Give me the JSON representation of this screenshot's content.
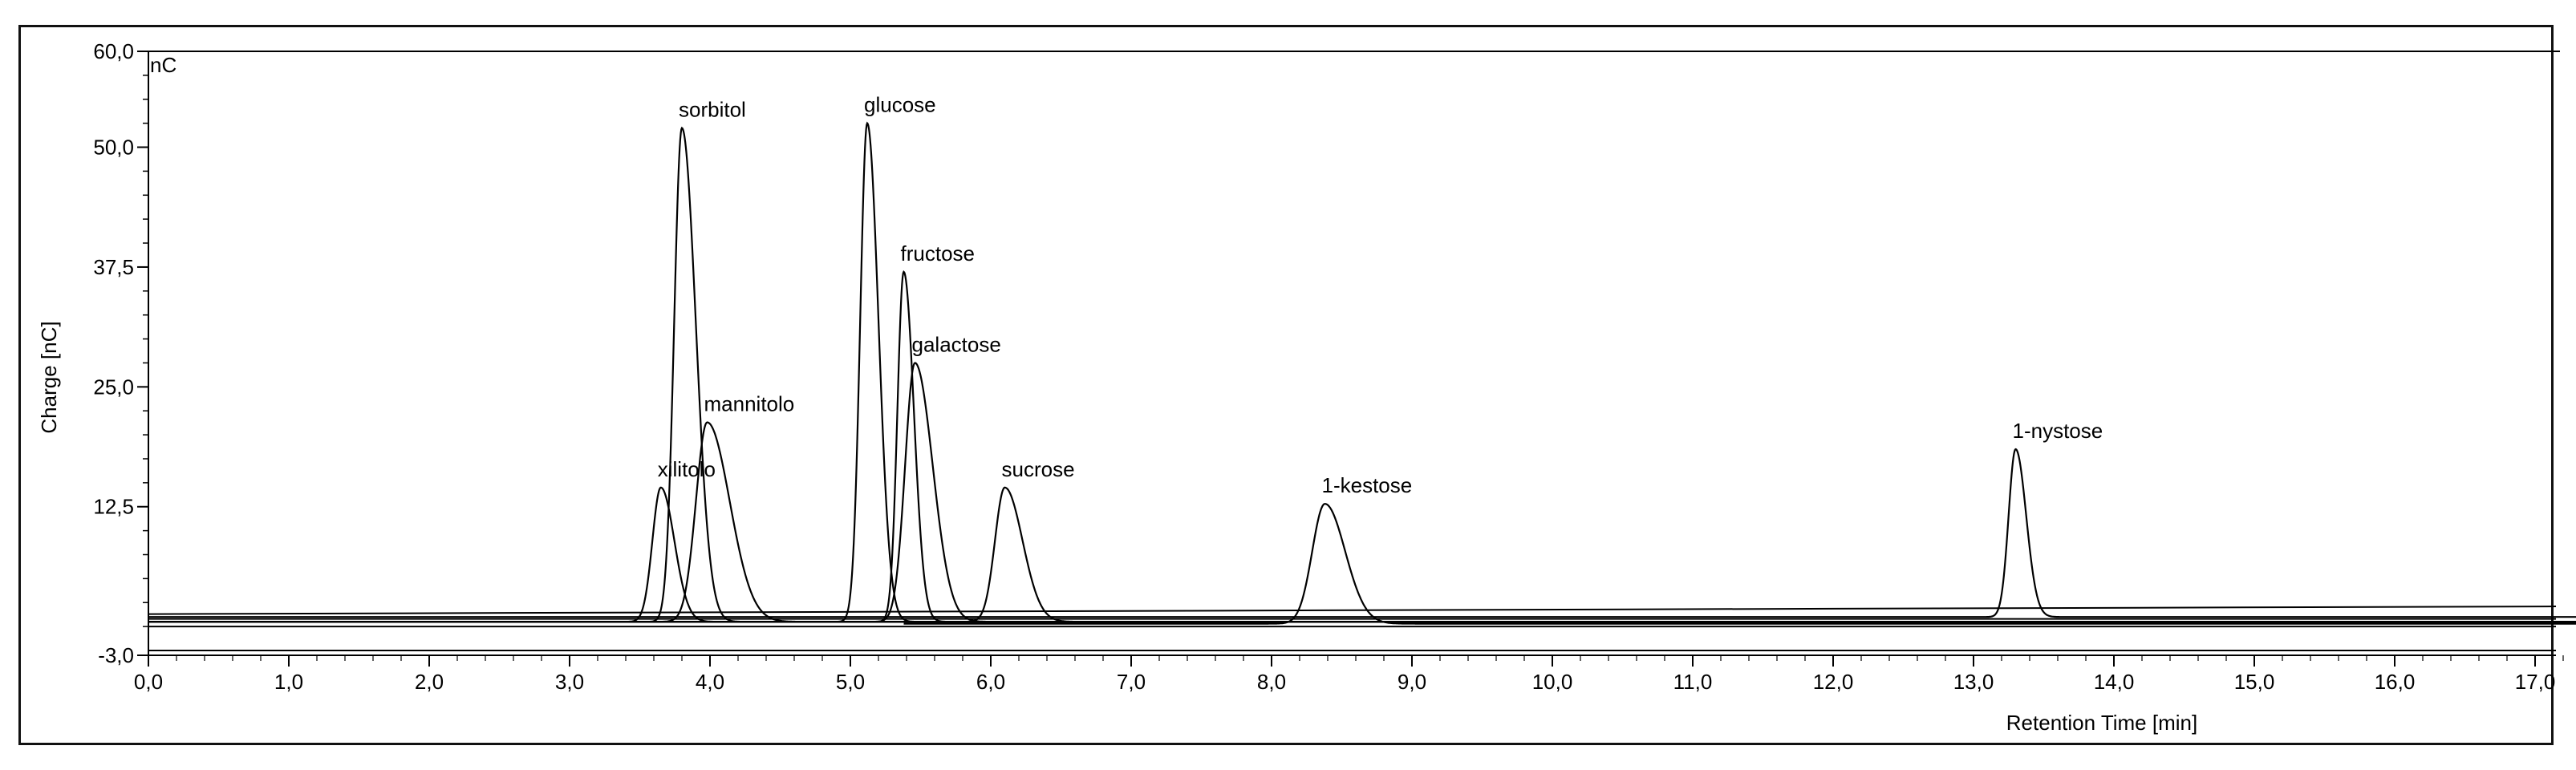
{
  "chart_data": {
    "type": "line",
    "title": "",
    "unit_label": "nC",
    "xlabel": "Retention Time [min]",
    "ylabel": "Charge [nC]",
    "xlim": [
      0.0,
      17.3
    ],
    "ylim": [
      -3.0,
      60.0
    ],
    "grid": false,
    "legend": "none",
    "x_ticks": [
      0.0,
      1.0,
      2.0,
      3.0,
      4.0,
      5.0,
      6.0,
      7.0,
      8.0,
      9.0,
      10.0,
      11.0,
      12.0,
      13.0,
      14.0,
      15.0,
      16.0,
      17.0
    ],
    "x_tick_labels": [
      "0,0",
      "1,0",
      "2,0",
      "3,0",
      "4,0",
      "5,0",
      "6,0",
      "7,0",
      "8,0",
      "9,0",
      "10,0",
      "11,0",
      "12,0",
      "13,0",
      "14,0",
      "15,0",
      "16,0",
      "17,0"
    ],
    "y_ticks": [
      -3.0,
      12.5,
      25.0,
      37.5,
      50.0,
      60.0
    ],
    "y_tick_labels": [
      "-3,0",
      "12,5",
      "25,0",
      "37,5",
      "50,0",
      "60,0"
    ],
    "peaks": [
      {
        "name": "xilitolo",
        "rt": 3.65,
        "height": 14.0,
        "baseline": 0.5,
        "width": 0.06,
        "tail": 1.6
      },
      {
        "name": "sorbitol",
        "rt": 3.8,
        "height": 51.5,
        "baseline": 0.5,
        "width": 0.055,
        "tail": 1.8
      },
      {
        "name": "mannitolo",
        "rt": 3.98,
        "height": 20.8,
        "baseline": 0.5,
        "width": 0.08,
        "tail": 2.0
      },
      {
        "name": "glucose",
        "rt": 5.12,
        "height": 52.0,
        "baseline": 0.5,
        "width": 0.05,
        "tail": 1.6
      },
      {
        "name": "fructose",
        "rt": 5.38,
        "height": 36.5,
        "baseline": 0.5,
        "width": 0.045,
        "tail": 1.6
      },
      {
        "name": "galactose",
        "rt": 5.46,
        "height": 27.0,
        "baseline": 0.5,
        "width": 0.07,
        "tail": 1.8
      },
      {
        "name": "sucrose",
        "rt": 6.1,
        "height": 14.0,
        "baseline": 0.5,
        "width": 0.07,
        "tail": 1.8
      },
      {
        "name": "1-kestose",
        "rt": 8.38,
        "height": 12.5,
        "baseline": 0.3,
        "width": 0.09,
        "tail": 1.6
      },
      {
        "name": "1-nystose",
        "rt": 13.3,
        "height": 17.5,
        "baseline": 1.0,
        "width": 0.05,
        "tail": 1.5
      }
    ],
    "series_color": "#000000"
  }
}
